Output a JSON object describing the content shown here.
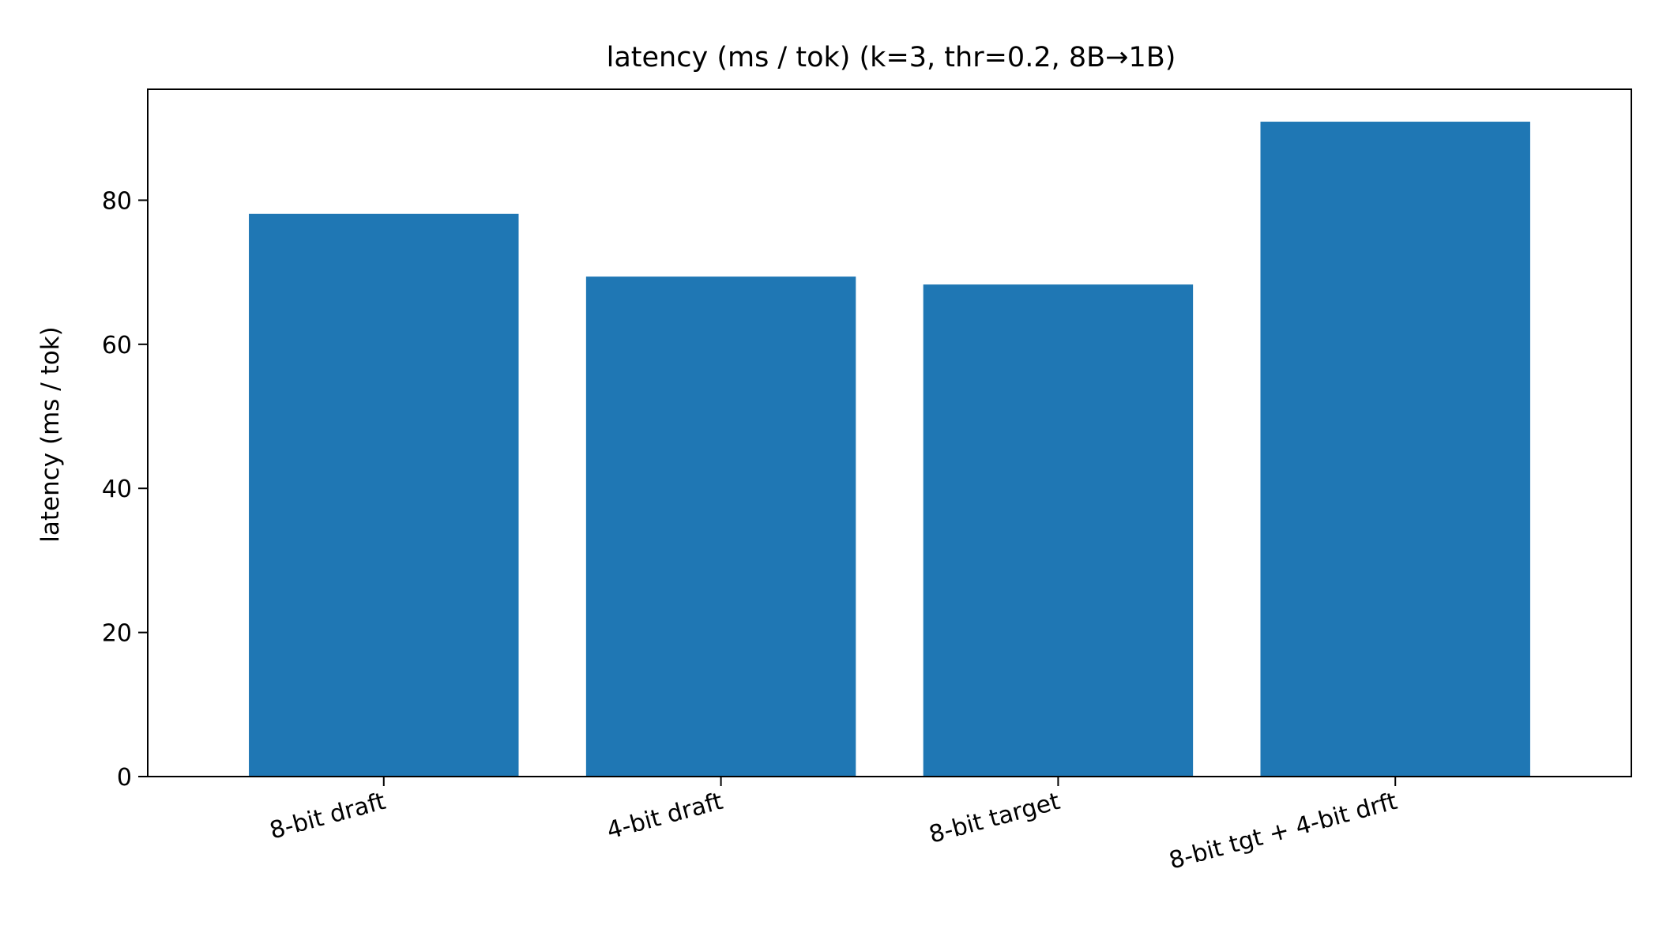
{
  "chart_data": {
    "type": "bar",
    "title": "latency (ms / tok) (k=3, thr=0.2, 8B→1B)",
    "xlabel": "",
    "ylabel": "latency (ms / tok)",
    "categories": [
      "8-bit draft",
      "4-bit draft",
      "8-bit target",
      "8-bit tgt + 4-bit drft"
    ],
    "values": [
      78.1,
      69.4,
      68.3,
      90.9
    ],
    "ylim": [
      0,
      95.4
    ],
    "yticks": [
      0,
      20,
      40,
      60,
      80
    ],
    "grid": false,
    "x_tick_label_rotation_deg": 15,
    "colors": {
      "bar": "#1f77b4",
      "axes": "#000000",
      "background": "#ffffff"
    }
  }
}
